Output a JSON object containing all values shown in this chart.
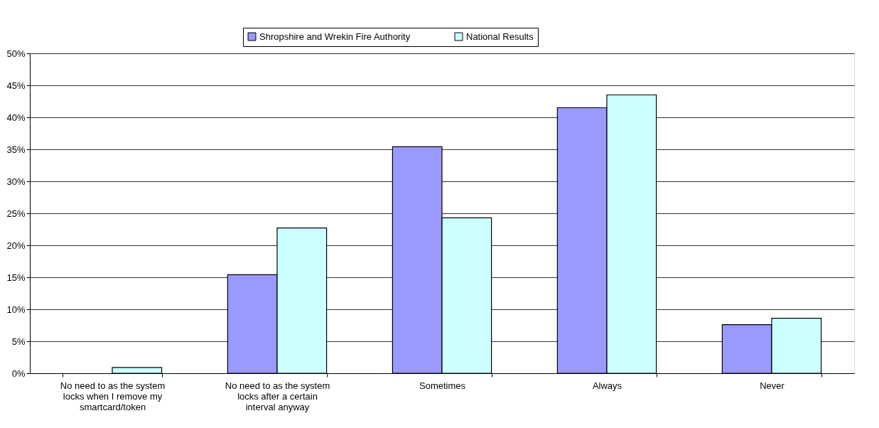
{
  "chart_data": {
    "type": "bar",
    "categories": [
      "No need to as the system locks when I remove my smartcard/token",
      "No need to as the system locks after a certain interval anyway",
      "Sometimes",
      "Always",
      "Never"
    ],
    "series": [
      {
        "name": "Shropshire and Wrekin Fire Authority",
        "color": "#9999ff",
        "values": [
          0,
          15.4,
          35.4,
          41.5,
          7.6
        ]
      },
      {
        "name": "National Results",
        "color": "#ccffff",
        "values": [
          0.9,
          22.7,
          24.3,
          43.5,
          8.6
        ]
      }
    ],
    "ylim": [
      0,
      50
    ],
    "yticks": [
      {
        "value": 0,
        "label": "0%"
      },
      {
        "value": 5,
        "label": "5%"
      },
      {
        "value": 10,
        "label": "10%"
      },
      {
        "value": 15,
        "label": "15%"
      },
      {
        "value": 20,
        "label": "20%"
      },
      {
        "value": 25,
        "label": "25%"
      },
      {
        "value": 30,
        "label": "30%"
      },
      {
        "value": 35,
        "label": "35%"
      },
      {
        "value": 40,
        "label": "40%"
      },
      {
        "value": 45,
        "label": "45%"
      },
      {
        "value": 50,
        "label": "50%"
      }
    ],
    "grid": "y",
    "legend": "top"
  }
}
